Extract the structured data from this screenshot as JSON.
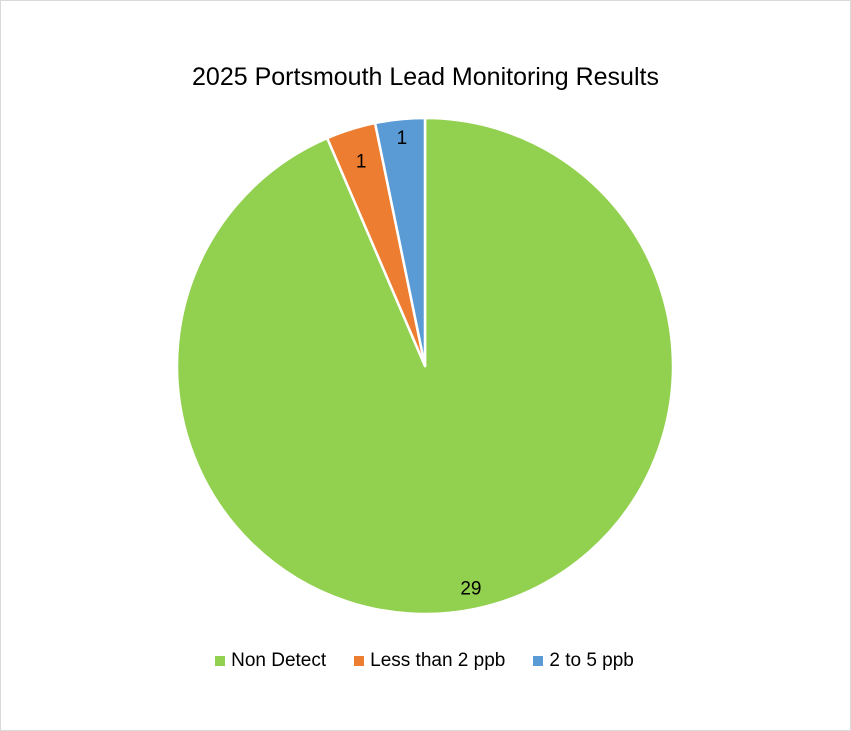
{
  "chart_data": {
    "type": "pie",
    "title": "2025 Portsmouth Lead Monitoring Results",
    "categories": [
      "Non Detect",
      "Less than 2 ppb",
      "2 to 5 ppb"
    ],
    "values": [
      29,
      1,
      1
    ],
    "data_labels": [
      "29",
      "1",
      "1"
    ],
    "colors": [
      "#92d050",
      "#ed7d31",
      "#5b9bd5"
    ],
    "legend_position": "bottom",
    "start_angle": "12 o'clock, slices ordered counterclockwise"
  }
}
